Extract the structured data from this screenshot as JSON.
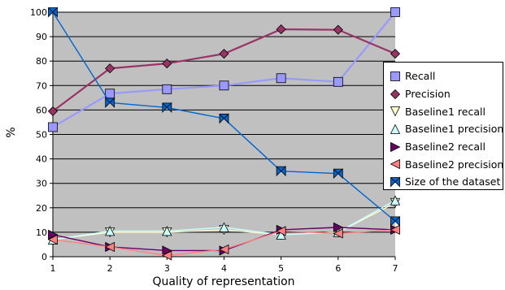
{
  "chart_data": {
    "type": "line",
    "xlabel": "Quality of representation",
    "ylabel": "%",
    "x": [
      1,
      2,
      3,
      4,
      5,
      6,
      7
    ],
    "xlim": [
      1,
      7
    ],
    "ylim": [
      0,
      100
    ],
    "yticks": [
      0,
      10,
      20,
      30,
      40,
      50,
      60,
      70,
      80,
      90,
      100
    ],
    "grid": true,
    "legend_position": "right",
    "plot_background": "#c0c0c0",
    "series": [
      {
        "name": "Recall",
        "values": [
          53,
          66.7,
          68.5,
          70,
          73,
          71.5,
          100
        ],
        "color": "#9999ff",
        "line_color": "#9999ff",
        "marker": "square",
        "marker_color": "#9999ff"
      },
      {
        "name": "Precision",
        "values": [
          59.5,
          77,
          79,
          83,
          93,
          92.8,
          83
        ],
        "color": "#993366",
        "line_color": "#993366",
        "marker": "diamond",
        "marker_color": "#993366"
      },
      {
        "name": "Baseline1 recall",
        "values": [
          7,
          10,
          10,
          11,
          9,
          10,
          22
        ],
        "color": "#ffffcc",
        "line_color": "#ffffcc",
        "marker": "triangle-down",
        "marker_color": "#ffffcc"
      },
      {
        "name": "Baseline1 precision",
        "values": [
          7,
          10.5,
          10.5,
          12,
          9,
          10,
          23
        ],
        "color": "#ccffff",
        "line_color": "#ccffff",
        "marker": "triangle-up",
        "marker_color": "#ccffff"
      },
      {
        "name": "Baseline2 recall",
        "values": [
          9,
          4,
          2.5,
          2.5,
          11,
          12,
          11
        ],
        "color": "#660066",
        "line_color": "#660066",
        "marker": "triangle-right",
        "marker_color": "#660066"
      },
      {
        "name": "Baseline2 precision",
        "values": [
          7,
          4,
          0.5,
          3,
          10.5,
          9.5,
          11
        ],
        "color": "#ff8080",
        "line_color": "#ff8080",
        "marker": "triangle-left",
        "marker_color": "#ff8080"
      },
      {
        "name": "Size of the dataset",
        "values": [
          100,
          63,
          61,
          56.5,
          35,
          34,
          14.5
        ],
        "color": "#0066cc",
        "line_color": "#0066cc",
        "marker": "bowtie",
        "marker_color": "#0066cc"
      }
    ]
  }
}
